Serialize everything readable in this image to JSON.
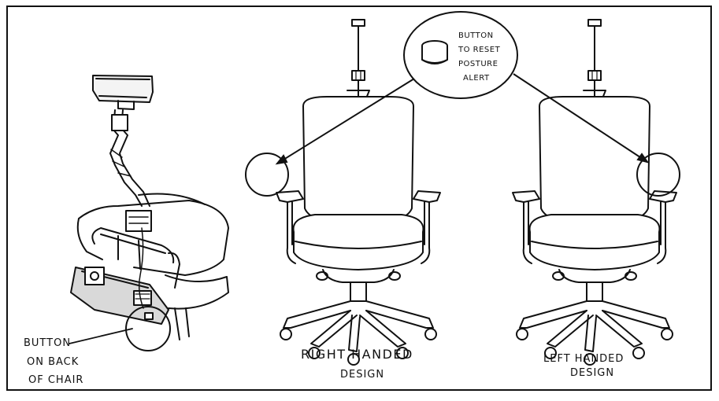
{
  "labels": {
    "button_back": [
      "BUTTON",
      "ON BACK",
      "OF CHAIR"
    ],
    "reset_button": [
      "BUTTON",
      "TO RESET",
      "POSTURE",
      "ALERT"
    ],
    "right_handed": [
      "RIGHT HANDED",
      "DESIGN"
    ],
    "left_handed": [
      "LEFT HANDED",
      "DESIGN"
    ]
  }
}
